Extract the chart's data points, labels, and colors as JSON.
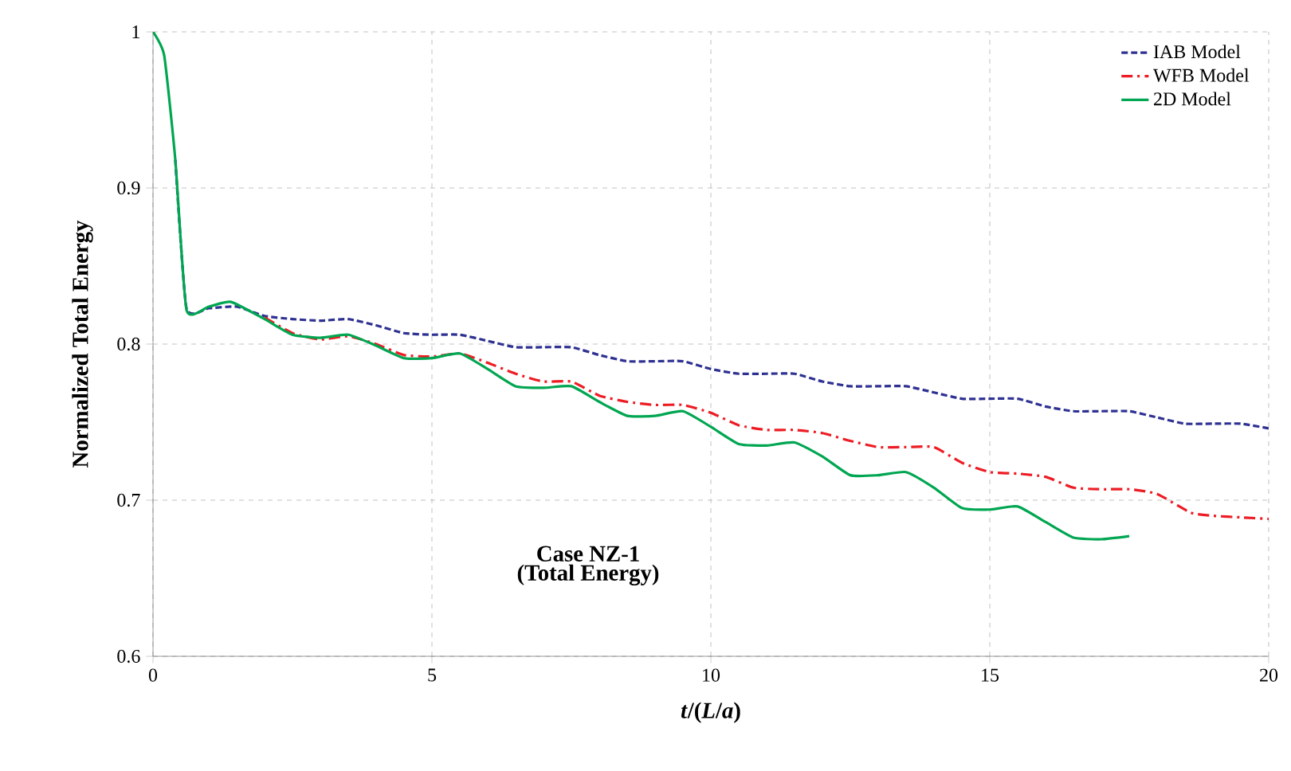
{
  "chart_data": {
    "type": "line",
    "xlabel": "*t*/(*L*/*a*)",
    "ylabel": "Normalized Total Energy",
    "xlim": [
      0,
      20
    ],
    "ylim": [
      0.6,
      1
    ],
    "xticks": [
      0,
      5,
      10,
      15,
      20
    ],
    "yticks": [
      0.6,
      0.7,
      0.8,
      0.9,
      1
    ],
    "grid": true,
    "legend": "top right",
    "annotations": [
      "Case NZ-1",
      "(Total Energy)"
    ],
    "series": [
      {
        "name": "IAB Model",
        "color": "#2e3192",
        "line_style": "dashed",
        "x": [
          0.4,
          0.6,
          1,
          1.5,
          2,
          2.5,
          3,
          3.5,
          4,
          4.5,
          5,
          5.5,
          6,
          6.5,
          7,
          7.5,
          8,
          8.5,
          9,
          9.5,
          10,
          10.5,
          11,
          11.5,
          12,
          12.5,
          13,
          13.5,
          14,
          14.5,
          15,
          15.5,
          16,
          16.5,
          17,
          17.5,
          18,
          18.5,
          19,
          19.5,
          20
        ],
        "values": [
          0.918,
          0.823,
          0.823,
          0.824,
          0.818,
          0.816,
          0.815,
          0.816,
          0.812,
          0.807,
          0.806,
          0.806,
          0.802,
          0.798,
          0.798,
          0.798,
          0.793,
          0.789,
          0.789,
          0.789,
          0.784,
          0.781,
          0.781,
          0.781,
          0.776,
          0.773,
          0.773,
          0.773,
          0.769,
          0.765,
          0.765,
          0.765,
          0.76,
          0.757,
          0.757,
          0.757,
          0.753,
          0.749,
          0.749,
          0.749,
          0.746
        ]
      },
      {
        "name": "WFB Model",
        "color": "#ed1c24",
        "line_style": "dashdot",
        "x": [
          2,
          2.5,
          3,
          3.5,
          4,
          4.5,
          5,
          5.5,
          6,
          6.5,
          7,
          7.5,
          8,
          8.5,
          9,
          9.5,
          10,
          10.5,
          11,
          11.5,
          12,
          12.5,
          13,
          13.5,
          14,
          14.5,
          15,
          15.5,
          16,
          16.5,
          17,
          17.5,
          18,
          18.6,
          19,
          19.5,
          20
        ],
        "values": [
          0.817,
          0.807,
          0.803,
          0.805,
          0.8,
          0.793,
          0.792,
          0.794,
          0.788,
          0.781,
          0.776,
          0.776,
          0.767,
          0.763,
          0.761,
          0.761,
          0.756,
          0.748,
          0.745,
          0.745,
          0.743,
          0.738,
          0.734,
          0.734,
          0.734,
          0.724,
          0.718,
          0.717,
          0.715,
          0.708,
          0.707,
          0.707,
          0.704,
          0.692,
          0.69,
          0.689,
          0.688
        ]
      },
      {
        "name": "2D Model",
        "color": "#00a651",
        "line_style": "solid",
        "x": [
          0,
          0.2,
          0.4,
          0.6,
          1,
          1.4,
          2,
          2.5,
          3,
          3.5,
          4,
          4.5,
          5,
          5.5,
          6,
          6.5,
          7,
          7.5,
          8,
          8.5,
          9,
          9.5,
          10,
          10.5,
          11,
          11.5,
          12,
          12.5,
          13,
          13.5,
          14,
          14.5,
          15,
          15.5,
          16,
          16.5,
          17,
          17.5
        ],
        "values": [
          1.0,
          0.985,
          0.918,
          0.822,
          0.824,
          0.827,
          0.816,
          0.806,
          0.804,
          0.806,
          0.799,
          0.791,
          0.791,
          0.794,
          0.784,
          0.773,
          0.772,
          0.773,
          0.763,
          0.754,
          0.754,
          0.757,
          0.747,
          0.736,
          0.735,
          0.737,
          0.728,
          0.716,
          0.716,
          0.718,
          0.708,
          0.695,
          0.694,
          0.696,
          0.686,
          0.676,
          0.675,
          0.677
        ]
      }
    ]
  }
}
